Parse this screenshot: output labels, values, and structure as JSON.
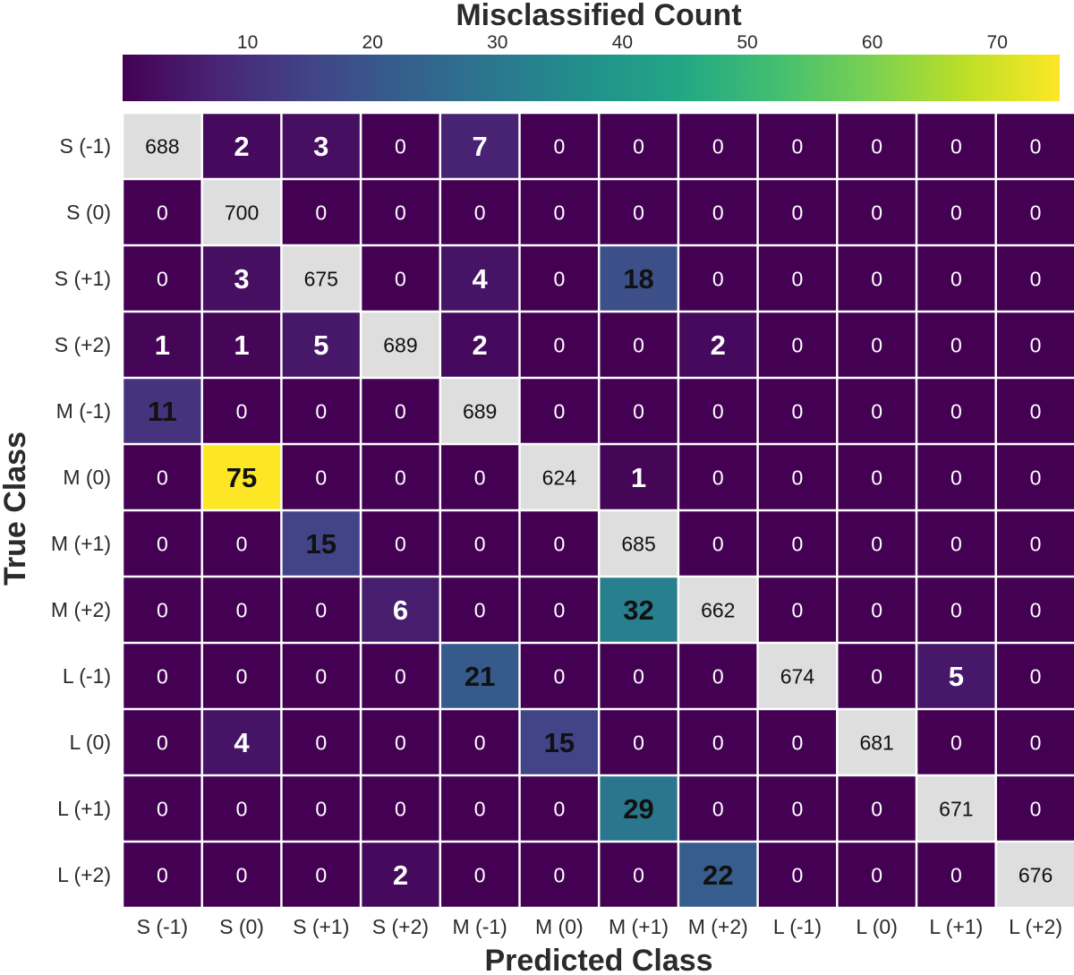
{
  "chart_data": {
    "type": "heatmap",
    "colorbar": {
      "title": "Misclassified Count",
      "ticks": [
        "10",
        "20",
        "30",
        "40",
        "50",
        "60",
        "70"
      ],
      "range": [
        0,
        75
      ],
      "colormap": "viridis",
      "position": "top"
    },
    "xlabel": "Predicted Class",
    "ylabel": "True Class",
    "x_categories": [
      "S (-1)",
      "S (0)",
      "S (+1)",
      "S (+2)",
      "M (-1)",
      "M (0)",
      "M (+1)",
      "M (+2)",
      "L (-1)",
      "L (0)",
      "L (+1)",
      "L (+2)"
    ],
    "y_categories": [
      "S (-1)",
      "S (0)",
      "S (+1)",
      "S (+2)",
      "M (-1)",
      "M (0)",
      "M (+1)",
      "M (+2)",
      "L (-1)",
      "L (0)",
      "L (+1)",
      "L (+2)"
    ],
    "values": [
      [
        688,
        2,
        3,
        0,
        7,
        0,
        0,
        0,
        0,
        0,
        0,
        0
      ],
      [
        0,
        700,
        0,
        0,
        0,
        0,
        0,
        0,
        0,
        0,
        0,
        0
      ],
      [
        0,
        3,
        675,
        0,
        4,
        0,
        18,
        0,
        0,
        0,
        0,
        0
      ],
      [
        1,
        1,
        5,
        689,
        2,
        0,
        0,
        2,
        0,
        0,
        0,
        0
      ],
      [
        11,
        0,
        0,
        0,
        689,
        0,
        0,
        0,
        0,
        0,
        0,
        0
      ],
      [
        0,
        75,
        0,
        0,
        0,
        624,
        1,
        0,
        0,
        0,
        0,
        0
      ],
      [
        0,
        0,
        15,
        0,
        0,
        0,
        685,
        0,
        0,
        0,
        0,
        0
      ],
      [
        0,
        0,
        0,
        6,
        0,
        0,
        32,
        662,
        0,
        0,
        0,
        0
      ],
      [
        0,
        0,
        0,
        0,
        21,
        0,
        0,
        0,
        674,
        0,
        5,
        0
      ],
      [
        0,
        4,
        0,
        0,
        0,
        15,
        0,
        0,
        0,
        681,
        0,
        0
      ],
      [
        0,
        0,
        0,
        0,
        0,
        0,
        29,
        0,
        0,
        0,
        671,
        0
      ],
      [
        0,
        0,
        0,
        2,
        0,
        0,
        0,
        22,
        0,
        0,
        0,
        676
      ]
    ],
    "diagonal_color": "#dedede",
    "grid": true
  }
}
